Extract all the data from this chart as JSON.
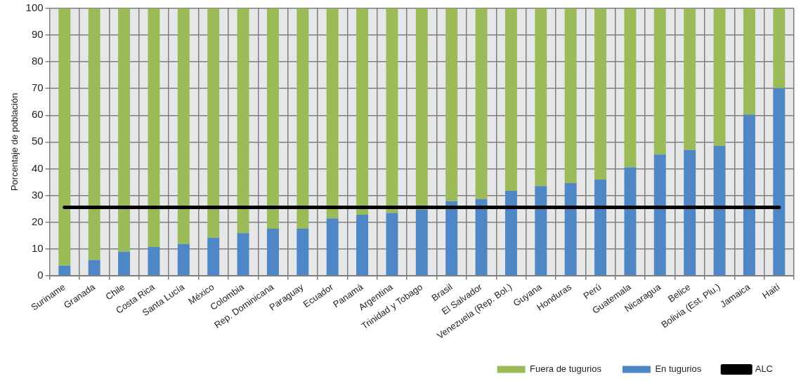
{
  "chart_data": {
    "type": "bar",
    "stacked": true,
    "ylabel": "Porcentaje de población",
    "categories": [
      "Suriname",
      "Granada",
      "Chile",
      "Costa Rica",
      "Santa Lucía",
      "México",
      "Colombia",
      "Rep. Dominicana",
      "Paraguay",
      "Ecuador",
      "Panamá",
      "Argentina",
      "Trinidad y Tobago",
      "Brasil",
      "El Salvador",
      "Venezuela (Rep. Bol.)",
      "Guyana",
      "Honduras",
      "Perú",
      "Guatemala",
      "Nicaragua",
      "Belice",
      "Bolivia (Est. Plu.)",
      "Jamaica",
      "Haití"
    ],
    "series": [
      {
        "name": "En tugurios",
        "color": "#4f86c6",
        "values": [
          3.7,
          5.8,
          8.9,
          10.7,
          11.8,
          14.2,
          15.9,
          17.5,
          17.5,
          21.4,
          22.8,
          23.4,
          24.7,
          27.8,
          28.6,
          31.7,
          33.5,
          34.6,
          35.9,
          40.5,
          45.3,
          47.0,
          48.6,
          60.3,
          70.1
        ]
      },
      {
        "name": "Fuera de tugurios",
        "color": "#9bbb59",
        "values": [
          96.3,
          94.2,
          91.1,
          89.3,
          88.2,
          85.8,
          84.1,
          82.5,
          82.5,
          78.6,
          77.2,
          76.6,
          75.3,
          72.2,
          71.4,
          68.3,
          66.5,
          65.4,
          64.1,
          59.5,
          54.7,
          53.0,
          51.4,
          39.7,
          29.9
        ]
      },
      {
        "name": "ALC",
        "type": "line",
        "color": "#000000",
        "values": [
          25.5,
          25.5,
          25.5,
          25.5,
          25.5,
          25.5,
          25.5,
          25.5,
          25.5,
          25.5,
          25.5,
          25.5,
          25.5,
          25.5,
          25.5,
          25.5,
          25.5,
          25.5,
          25.5,
          25.5,
          25.5,
          25.5,
          25.5,
          25.5,
          25.5
        ]
      }
    ],
    "ylim": [
      0,
      100
    ],
    "yticks": [
      0,
      10,
      20,
      30,
      40,
      50,
      60,
      70,
      80,
      90,
      100
    ],
    "grid": true,
    "legend": "bottom right",
    "marker": "none",
    "line_style": "solid"
  }
}
